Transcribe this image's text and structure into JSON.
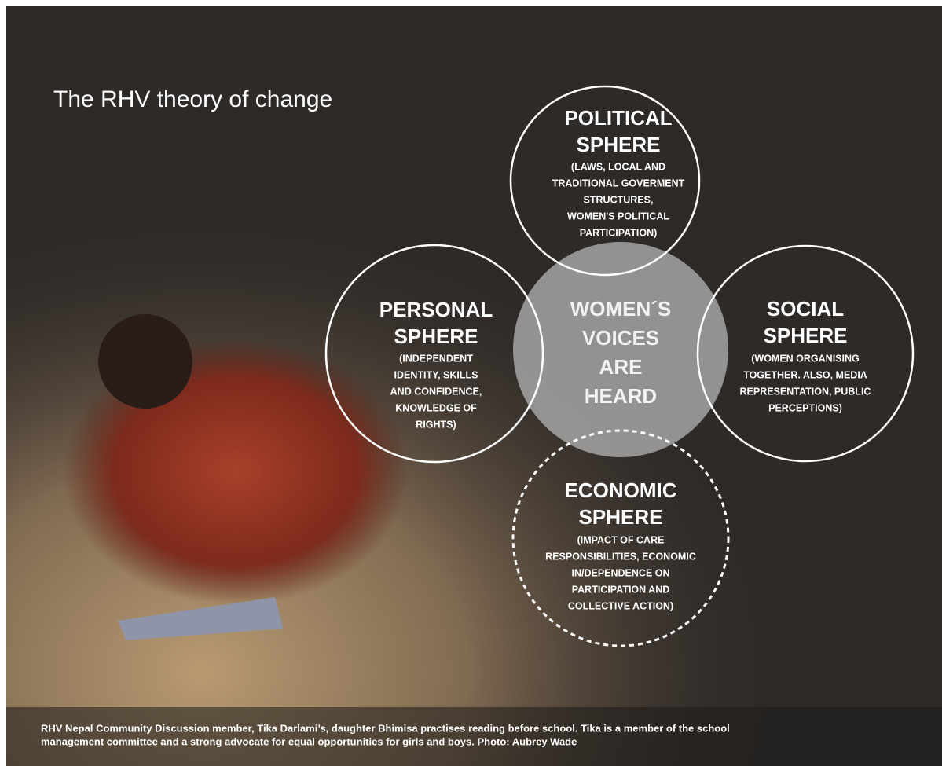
{
  "title": "The RHV theory of change",
  "circles": [
    {
      "heading": [
        "POLITICAL",
        "SPHERE"
      ],
      "description": [
        "(LAWS, LOCAL AND",
        "TRADITIONAL GOVERMENT",
        "STRUCTURES,",
        "WOMEN'S POLITICAL",
        "PARTICIPATION)"
      ]
    },
    {
      "heading": [
        "PERSONAL",
        "SPHERE"
      ],
      "description": [
        "(INDEPENDENT",
        "IDENTITY, SKILLS",
        "AND CONFIDENCE,",
        "KNOWLEDGE OF",
        "RIGHTS)"
      ]
    },
    {
      "heading": [
        "SOCIAL",
        "SPHERE"
      ],
      "description": [
        "(WOMEN ORGANISING",
        "TOGETHER. ALSO, MEDIA",
        "REPRESENTATION, PUBLIC",
        "PERCEPTIONS)"
      ]
    },
    {
      "heading": [
        "ECONOMIC",
        "SPHERE"
      ],
      "description": [
        "(IMPACT OF CARE",
        "RESPONSIBILITIES, ECONOMIC",
        "IN/DEPENDENCE ON",
        "PARTICIPATION AND",
        "COLLECTIVE ACTION)"
      ]
    }
  ],
  "center": [
    "WOMEN´S",
    "VOICES",
    "ARE",
    "HEARD"
  ],
  "caption": [
    "RHV Nepal Community Discussion member, Tika Darlami’s, daughter Bhimisa practises reading before school. Tika is a member of the school",
    "management committee and a strong advocate for equal opportunities for girls and boys. Photo: Aubrey Wade"
  ]
}
